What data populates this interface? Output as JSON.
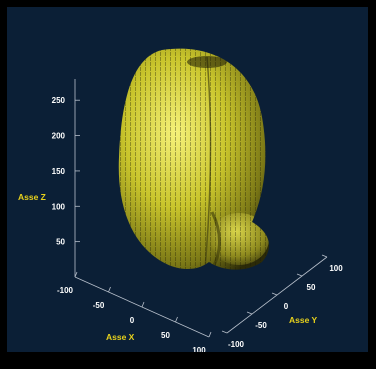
{
  "chart_data": {
    "type": "surface3d",
    "title": "",
    "axes": {
      "x": {
        "label": "Asse X",
        "ticks": [
          "-100",
          "-50",
          "0",
          "50",
          "100"
        ],
        "range": [
          -100,
          100
        ]
      },
      "y": {
        "label": "Asse Y",
        "ticks": [
          "-100",
          "-50",
          "0",
          "50",
          "100"
        ],
        "range": [
          -100,
          100
        ]
      },
      "z": {
        "label": "Asse Z",
        "ticks": [
          "50",
          "100",
          "150",
          "200",
          "250"
        ],
        "range": [
          0,
          280
        ]
      }
    },
    "shape": "voxel-rendered head-shaped 3D solid (lobed ellipsoid)",
    "colors": {
      "background": "#0b1f36",
      "surface": "#c8c82a",
      "surface_highlight": "#f4f06a",
      "surface_shadow": "#4a4a10",
      "axis_text": "#ffffff",
      "axis_title": "#e8d21c"
    },
    "grid": false
  }
}
